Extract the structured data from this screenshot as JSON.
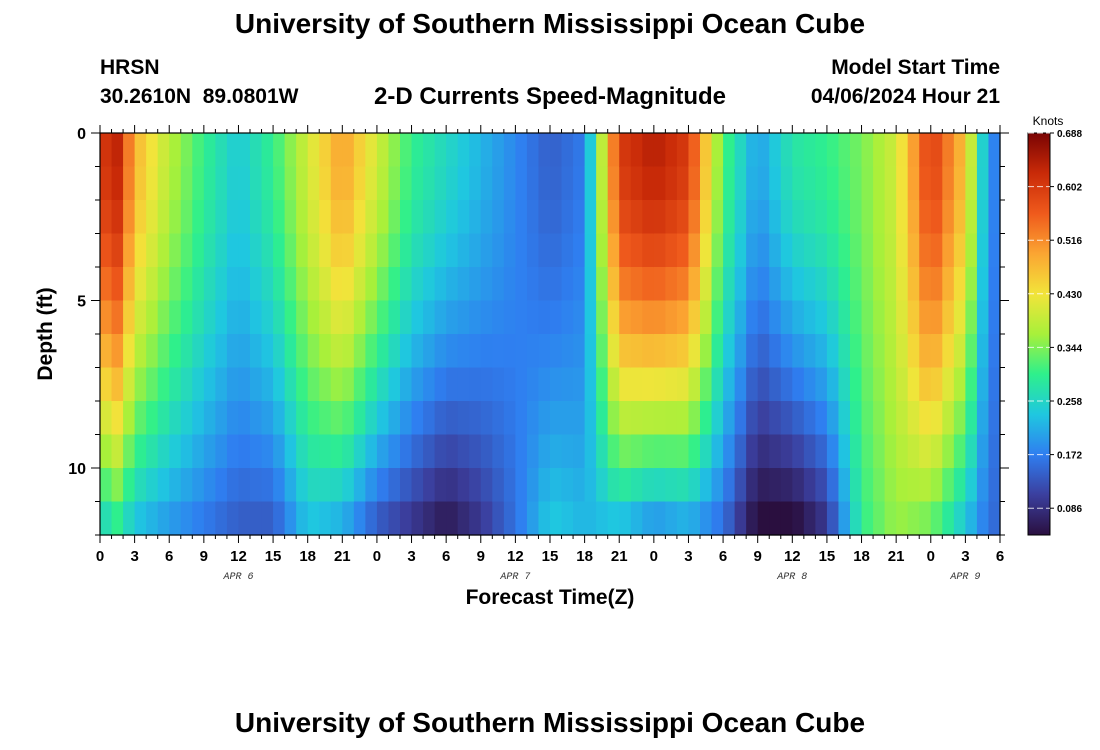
{
  "header": {
    "title": "University of Southern Mississippi Ocean Cube",
    "station": "HRSN",
    "coords": "30.2610N  89.0801W",
    "subtitle": "2-D Currents Speed-Magnitude",
    "model_start_label": "Model Start Time",
    "model_start_value": "04/06/2024 Hour 21"
  },
  "footer": {
    "title": "University of Southern Mississippi Ocean Cube"
  },
  "colors": {
    "scale": [
      "#2a0f3f",
      "#3b3f9e",
      "#2f7ef0",
      "#1fc7e0",
      "#2ef08c",
      "#a8f03a",
      "#f2e43a",
      "#fba532",
      "#ef5a1c",
      "#c92a08",
      "#7a0403"
    ]
  },
  "chart_data": {
    "type": "heatmap",
    "xlabel": "Forecast Time(Z)",
    "ylabel": "Depth (ft)",
    "x_range_hours": [
      0,
      78
    ],
    "y_range_ft": [
      0,
      12
    ],
    "y_ticks": [
      0,
      5,
      10
    ],
    "x_tick_labels": [
      "0",
      "3",
      "6",
      "9",
      "12",
      "15",
      "18",
      "21",
      "0",
      "3",
      "6",
      "9",
      "12",
      "15",
      "18",
      "21",
      "0",
      "3",
      "6",
      "9",
      "12",
      "15",
      "18",
      "21",
      "0",
      "3",
      "6"
    ],
    "date_labels": [
      {
        "text": "APR 6",
        "hour": 12
      },
      {
        "text": "APR 7",
        "hour": 36
      },
      {
        "text": "APR 8",
        "hour": 60
      },
      {
        "text": "APR 9",
        "hour": 75
      }
    ],
    "colorbar": {
      "unit": "Knots",
      "min": 0.043,
      "max": 0.688,
      "tick_labels": [
        "0.688",
        "0.602",
        "0.516",
        "0.430",
        "0.344",
        "0.258",
        "0.172",
        "0.086"
      ],
      "tick_values": [
        0.688,
        0.602,
        0.516,
        0.43,
        0.344,
        0.258,
        0.172,
        0.086
      ]
    },
    "depth_levels_ft": [
      0.5,
      1.5,
      2.5,
      3.5,
      4.5,
      5.5,
      6.5,
      7.5,
      8.5,
      9.5,
      10.5,
      11.5
    ],
    "surface_profile": {
      "hours": [
        0,
        1.5,
        3,
        6,
        9,
        12,
        15,
        18,
        21,
        24,
        27,
        30,
        33,
        36,
        39,
        42,
        45,
        48,
        51,
        54,
        57,
        60,
        63,
        66,
        69,
        72,
        75,
        76.5,
        78
      ],
      "speeds": [
        0.6,
        0.63,
        0.48,
        0.38,
        0.3,
        0.24,
        0.3,
        0.4,
        0.5,
        0.4,
        0.3,
        0.26,
        0.22,
        0.18,
        0.14,
        0.17,
        0.6,
        0.64,
        0.6,
        0.32,
        0.2,
        0.28,
        0.3,
        0.34,
        0.4,
        0.6,
        0.46,
        0.25,
        0.14
      ]
    },
    "bottom_profile": {
      "hours": [
        0,
        1.5,
        3,
        6,
        9,
        12,
        15,
        18,
        21,
        24,
        27,
        30,
        33,
        36,
        39,
        42,
        45,
        48,
        51,
        54,
        57,
        60,
        63,
        66,
        69,
        72,
        75,
        76.5,
        78
      ],
      "speeds": [
        0.26,
        0.3,
        0.24,
        0.2,
        0.17,
        0.14,
        0.14,
        0.24,
        0.22,
        0.14,
        0.1,
        0.06,
        0.1,
        0.16,
        0.24,
        0.22,
        0.24,
        0.2,
        0.22,
        0.16,
        0.04,
        0.04,
        0.1,
        0.3,
        0.36,
        0.34,
        0.24,
        0.18,
        0.14
      ]
    }
  }
}
